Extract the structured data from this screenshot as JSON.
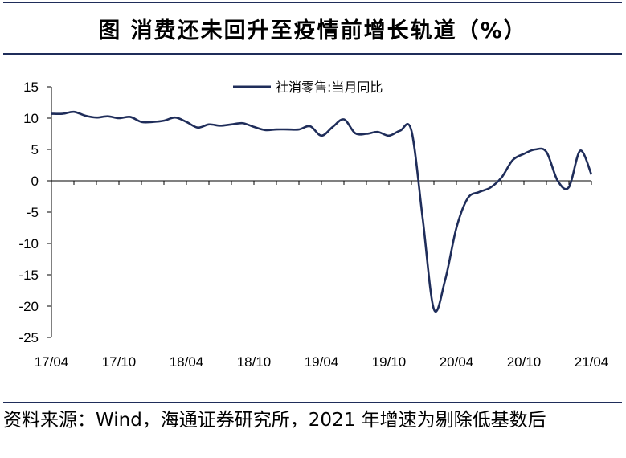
{
  "title": "图 消费还未回升至疫情前增长轨道（%）",
  "source": "资料来源：Wind，海通证券研究所，2021 年增速为剔除低基数后",
  "chart_data": {
    "type": "line",
    "title": "图 消费还未回升至疫情前增长轨道（%）",
    "xlabel": "",
    "ylabel": "",
    "ylim": [
      -25,
      15
    ],
    "yticks": [
      15,
      10,
      5,
      0,
      -5,
      -10,
      -15,
      -20,
      -25
    ],
    "x_tick_labels": [
      "17/04",
      "17/10",
      "18/04",
      "18/10",
      "19/04",
      "19/10",
      "20/04",
      "20/10",
      "21/04"
    ],
    "legend_position": "top-center",
    "grid": false,
    "series": [
      {
        "name": "社消零售:当月同比",
        "color": "#1f2d5a",
        "x": [
          "2017-04",
          "2017-05",
          "2017-06",
          "2017-07",
          "2017-08",
          "2017-09",
          "2017-10",
          "2017-11",
          "2017-12",
          "2018-01",
          "2018-02",
          "2018-03",
          "2018-04",
          "2018-05",
          "2018-06",
          "2018-07",
          "2018-08",
          "2018-09",
          "2018-10",
          "2018-11",
          "2018-12",
          "2019-01",
          "2019-02",
          "2019-03",
          "2019-04",
          "2019-05",
          "2019-06",
          "2019-07",
          "2019-08",
          "2019-09",
          "2019-10",
          "2019-11",
          "2019-12",
          "2020-01",
          "2020-02",
          "2020-03",
          "2020-04",
          "2020-05",
          "2020-06",
          "2020-07",
          "2020-08",
          "2020-09",
          "2020-10",
          "2020-11",
          "2020-12",
          "2021-01",
          "2021-02",
          "2021-03",
          "2021-04"
        ],
        "values": [
          10.7,
          10.7,
          11.0,
          10.4,
          10.1,
          10.3,
          10.0,
          10.2,
          9.4,
          9.4,
          9.6,
          10.1,
          9.4,
          8.5,
          9.0,
          8.8,
          9.0,
          9.2,
          8.6,
          8.1,
          8.2,
          8.2,
          8.2,
          8.7,
          7.2,
          8.6,
          9.8,
          7.6,
          7.5,
          7.8,
          7.2,
          8.0,
          8.0,
          -6.0,
          -20.5,
          -15.8,
          -7.5,
          -2.8,
          -1.8,
          -1.1,
          0.5,
          3.3,
          4.3,
          5.0,
          4.6,
          0.0,
          -1.0,
          4.8,
          1.0
        ]
      }
    ]
  }
}
